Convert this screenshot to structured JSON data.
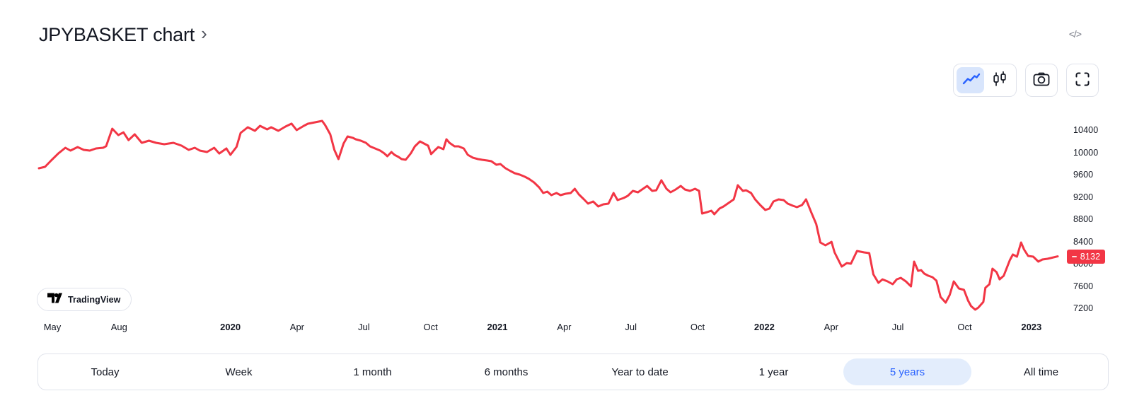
{
  "header": {
    "title": "JPYBASKET chart",
    "chevron": "›",
    "embed_code_glyph": "</>"
  },
  "toolbar": {
    "chart_type_icons": [
      "line-chart-icon",
      "candlestick-icon"
    ],
    "selected_chart_type": "line",
    "snapshot_icon": "camera-icon",
    "fullscreen_icon": "fullscreen-icon"
  },
  "attribution": {
    "label": "TradingView",
    "logo": "tradingview-logo"
  },
  "range_bar": {
    "buttons": [
      {
        "label": "Today",
        "selected": false
      },
      {
        "label": "Week",
        "selected": false
      },
      {
        "label": "1 month",
        "selected": false
      },
      {
        "label": "6 months",
        "selected": false
      },
      {
        "label": "Year to date",
        "selected": false
      },
      {
        "label": "1 year",
        "selected": false
      },
      {
        "label": "5 years",
        "selected": true
      },
      {
        "label": "All time",
        "selected": false
      }
    ]
  },
  "colors": {
    "accent": "#2962ff",
    "line_red": "#f23645",
    "border": "#e0e3eb",
    "text": "#131722",
    "muted": "#787b86",
    "selected_pill_bg": "#e3edfc",
    "selected_segment_bg": "#d8e5fc"
  },
  "chart_data": {
    "type": "line",
    "title": "JPYBASKET",
    "legend_position": "none",
    "grid": false,
    "line_color": "#f23645",
    "last_price": 8132,
    "y_axis": {
      "side": "right",
      "ticks": [
        10400,
        10000,
        9600,
        9200,
        8800,
        8400,
        8000,
        7600,
        7200
      ],
      "range": [
        7100,
        10650
      ]
    },
    "x_axis": {
      "start": "May 2019",
      "end": "Feb 2023",
      "labels": [
        {
          "text": "May",
          "month": 0,
          "bold": false
        },
        {
          "text": "Aug",
          "month": 3,
          "bold": false
        },
        {
          "text": "2020",
          "month": 8,
          "bold": true
        },
        {
          "text": "Apr",
          "month": 11,
          "bold": false
        },
        {
          "text": "Jul",
          "month": 14,
          "bold": false
        },
        {
          "text": "Oct",
          "month": 17,
          "bold": false
        },
        {
          "text": "2021",
          "month": 20,
          "bold": true
        },
        {
          "text": "Apr",
          "month": 23,
          "bold": false
        },
        {
          "text": "Jul",
          "month": 26,
          "bold": false
        },
        {
          "text": "Oct",
          "month": 29,
          "bold": false
        },
        {
          "text": "2022",
          "month": 32,
          "bold": true
        },
        {
          "text": "Apr",
          "month": 35,
          "bold": false
        },
        {
          "text": "Jul",
          "month": 38,
          "bold": false
        },
        {
          "text": "Oct",
          "month": 41,
          "bold": false
        },
        {
          "text": "2023",
          "month": 44,
          "bold": true
        }
      ]
    },
    "series": [
      {
        "name": "JPYBASKET",
        "points": [
          [
            0.0,
            9714
          ],
          [
            0.006,
            9740
          ],
          [
            0.012,
            9854
          ],
          [
            0.019,
            9980
          ],
          [
            0.026,
            10083
          ],
          [
            0.031,
            10032
          ],
          [
            0.038,
            10095
          ],
          [
            0.044,
            10044
          ],
          [
            0.05,
            10032
          ],
          [
            0.056,
            10070
          ],
          [
            0.063,
            10083
          ],
          [
            0.066,
            10110
          ],
          [
            0.072,
            10426
          ],
          [
            0.078,
            10310
          ],
          [
            0.083,
            10360
          ],
          [
            0.088,
            10220
          ],
          [
            0.094,
            10324
          ],
          [
            0.101,
            10172
          ],
          [
            0.108,
            10210
          ],
          [
            0.115,
            10172
          ],
          [
            0.123,
            10146
          ],
          [
            0.132,
            10172
          ],
          [
            0.14,
            10121
          ],
          [
            0.147,
            10044
          ],
          [
            0.153,
            10083
          ],
          [
            0.158,
            10032
          ],
          [
            0.165,
            10006
          ],
          [
            0.172,
            10083
          ],
          [
            0.177,
            9980
          ],
          [
            0.184,
            10070
          ],
          [
            0.188,
            9955
          ],
          [
            0.194,
            10100
          ],
          [
            0.198,
            10349
          ],
          [
            0.205,
            10451
          ],
          [
            0.212,
            10387
          ],
          [
            0.217,
            10476
          ],
          [
            0.224,
            10413
          ],
          [
            0.228,
            10451
          ],
          [
            0.235,
            10387
          ],
          [
            0.242,
            10464
          ],
          [
            0.248,
            10515
          ],
          [
            0.253,
            10400
          ],
          [
            0.26,
            10476
          ],
          [
            0.264,
            10514
          ],
          [
            0.278,
            10565
          ],
          [
            0.281,
            10489
          ],
          [
            0.286,
            10324
          ],
          [
            0.29,
            10044
          ],
          [
            0.294,
            9879
          ],
          [
            0.299,
            10159
          ],
          [
            0.303,
            10286
          ],
          [
            0.308,
            10261
          ],
          [
            0.311,
            10235
          ],
          [
            0.316,
            10210
          ],
          [
            0.321,
            10172
          ],
          [
            0.325,
            10108
          ],
          [
            0.33,
            10070
          ],
          [
            0.335,
            10032
          ],
          [
            0.339,
            9981
          ],
          [
            0.342,
            9930
          ],
          [
            0.346,
            10006
          ],
          [
            0.349,
            9955
          ],
          [
            0.353,
            9917
          ],
          [
            0.356,
            9879
          ],
          [
            0.36,
            9867
          ],
          [
            0.365,
            9981
          ],
          [
            0.369,
            10108
          ],
          [
            0.374,
            10197
          ],
          [
            0.378,
            10159
          ],
          [
            0.382,
            10121
          ],
          [
            0.385,
            9968
          ],
          [
            0.389,
            10044
          ],
          [
            0.392,
            10095
          ],
          [
            0.397,
            10057
          ],
          [
            0.4,
            10235
          ],
          [
            0.403,
            10172
          ],
          [
            0.408,
            10108
          ],
          [
            0.412,
            10108
          ],
          [
            0.417,
            10070
          ],
          [
            0.421,
            9955
          ],
          [
            0.426,
            9904
          ],
          [
            0.431,
            9879
          ],
          [
            0.435,
            9867
          ],
          [
            0.44,
            9854
          ],
          [
            0.444,
            9841
          ],
          [
            0.449,
            9778
          ],
          [
            0.453,
            9790
          ],
          [
            0.458,
            9714
          ],
          [
            0.463,
            9663
          ],
          [
            0.467,
            9625
          ],
          [
            0.472,
            9600
          ],
          [
            0.477,
            9562
          ],
          [
            0.481,
            9524
          ],
          [
            0.486,
            9460
          ],
          [
            0.491,
            9371
          ],
          [
            0.495,
            9270
          ],
          [
            0.499,
            9295
          ],
          [
            0.503,
            9232
          ],
          [
            0.508,
            9270
          ],
          [
            0.512,
            9232
          ],
          [
            0.517,
            9257
          ],
          [
            0.522,
            9270
          ],
          [
            0.526,
            9346
          ],
          [
            0.53,
            9244
          ],
          [
            0.535,
            9156
          ],
          [
            0.539,
            9079
          ],
          [
            0.544,
            9117
          ],
          [
            0.549,
            9029
          ],
          [
            0.554,
            9067
          ],
          [
            0.559,
            9079
          ],
          [
            0.564,
            9270
          ],
          [
            0.568,
            9143
          ],
          [
            0.574,
            9181
          ],
          [
            0.578,
            9219
          ],
          [
            0.583,
            9308
          ],
          [
            0.588,
            9283
          ],
          [
            0.592,
            9333
          ],
          [
            0.597,
            9397
          ],
          [
            0.602,
            9308
          ],
          [
            0.606,
            9320
          ],
          [
            0.611,
            9498
          ],
          [
            0.616,
            9346
          ],
          [
            0.62,
            9283
          ],
          [
            0.625,
            9333
          ],
          [
            0.63,
            9397
          ],
          [
            0.634,
            9333
          ],
          [
            0.639,
            9308
          ],
          [
            0.644,
            9346
          ],
          [
            0.648,
            9308
          ],
          [
            0.651,
            8902
          ],
          [
            0.656,
            8927
          ],
          [
            0.66,
            8952
          ],
          [
            0.663,
            8889
          ],
          [
            0.668,
            8991
          ],
          [
            0.672,
            9029
          ],
          [
            0.677,
            9092
          ],
          [
            0.682,
            9156
          ],
          [
            0.686,
            9410
          ],
          [
            0.691,
            9308
          ],
          [
            0.694,
            9320
          ],
          [
            0.699,
            9270
          ],
          [
            0.703,
            9156
          ],
          [
            0.708,
            9054
          ],
          [
            0.713,
            8965
          ],
          [
            0.717,
            8991
          ],
          [
            0.721,
            9117
          ],
          [
            0.726,
            9156
          ],
          [
            0.731,
            9143
          ],
          [
            0.735,
            9079
          ],
          [
            0.74,
            9041
          ],
          [
            0.744,
            9016
          ],
          [
            0.749,
            9054
          ],
          [
            0.753,
            9156
          ],
          [
            0.758,
            8927
          ],
          [
            0.763,
            8711
          ],
          [
            0.767,
            8381
          ],
          [
            0.772,
            8330
          ],
          [
            0.778,
            8393
          ],
          [
            0.781,
            8203
          ],
          [
            0.788,
            7949
          ],
          [
            0.793,
            8012
          ],
          [
            0.797,
            8000
          ],
          [
            0.803,
            8229
          ],
          [
            0.81,
            8203
          ],
          [
            0.815,
            8190
          ],
          [
            0.819,
            7809
          ],
          [
            0.824,
            7657
          ],
          [
            0.828,
            7720
          ],
          [
            0.833,
            7682
          ],
          [
            0.838,
            7632
          ],
          [
            0.842,
            7720
          ],
          [
            0.846,
            7746
          ],
          [
            0.851,
            7682
          ],
          [
            0.856,
            7593
          ],
          [
            0.859,
            8038
          ],
          [
            0.863,
            7872
          ],
          [
            0.866,
            7885
          ],
          [
            0.869,
            7822
          ],
          [
            0.873,
            7784
          ],
          [
            0.877,
            7759
          ],
          [
            0.881,
            7695
          ],
          [
            0.885,
            7403
          ],
          [
            0.89,
            7301
          ],
          [
            0.894,
            7441
          ],
          [
            0.898,
            7682
          ],
          [
            0.903,
            7555
          ],
          [
            0.908,
            7530
          ],
          [
            0.912,
            7339
          ],
          [
            0.915,
            7238
          ],
          [
            0.919,
            7174
          ],
          [
            0.922,
            7212
          ],
          [
            0.927,
            7314
          ],
          [
            0.929,
            7568
          ],
          [
            0.933,
            7632
          ],
          [
            0.936,
            7911
          ],
          [
            0.94,
            7847
          ],
          [
            0.943,
            7720
          ],
          [
            0.947,
            7784
          ],
          [
            0.953,
            8063
          ],
          [
            0.956,
            8165
          ],
          [
            0.96,
            8127
          ],
          [
            0.964,
            8381
          ],
          [
            0.967,
            8254
          ],
          [
            0.971,
            8140
          ],
          [
            0.976,
            8127
          ],
          [
            0.981,
            8038
          ],
          [
            0.985,
            8076
          ],
          [
            0.99,
            8089
          ],
          [
            0.993,
            8102
          ],
          [
            1.0,
            8132
          ]
        ]
      }
    ]
  }
}
